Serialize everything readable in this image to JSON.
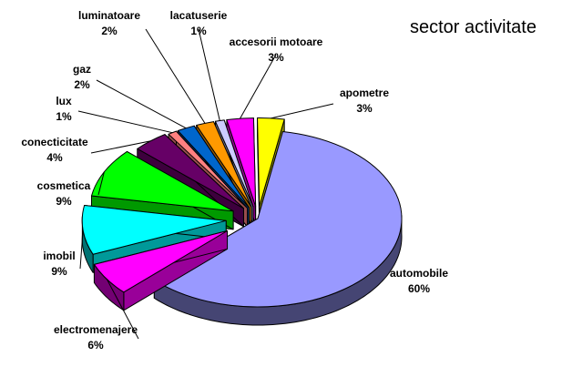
{
  "chart_data": {
    "type": "pie",
    "title": "sector activitate",
    "style": "3d-exploded",
    "legend": "none",
    "slices": [
      {
        "name": "automobile",
        "value": 60,
        "label": "60%",
        "color": "#9999ff"
      },
      {
        "name": "electromenajere",
        "value": 6,
        "label": "6%",
        "color": "#ff00ff"
      },
      {
        "name": "imobil",
        "value": 9,
        "label": "9%",
        "color": "#00ffff"
      },
      {
        "name": "cosmetica",
        "value": 9,
        "label": "9%",
        "color": "#00ff00"
      },
      {
        "name": "conecticitate",
        "value": 4,
        "label": "4%",
        "color": "#660066"
      },
      {
        "name": "lux",
        "value": 1,
        "label": "1%",
        "color": "#ff8080"
      },
      {
        "name": "gaz",
        "value": 2,
        "label": "2%",
        "color": "#0066cc"
      },
      {
        "name": "luminatoare",
        "value": 2,
        "label": "2%",
        "color": "#ff9900"
      },
      {
        "name": "lacatuserie",
        "value": 1,
        "label": "1%",
        "color": "#ccccff"
      },
      {
        "name": "accesorii motoare",
        "value": 3,
        "label": "3%",
        "color": "#ff00ff"
      },
      {
        "name": "apometre",
        "value": 3,
        "label": "3%",
        "color": "#ffff00"
      }
    ]
  }
}
